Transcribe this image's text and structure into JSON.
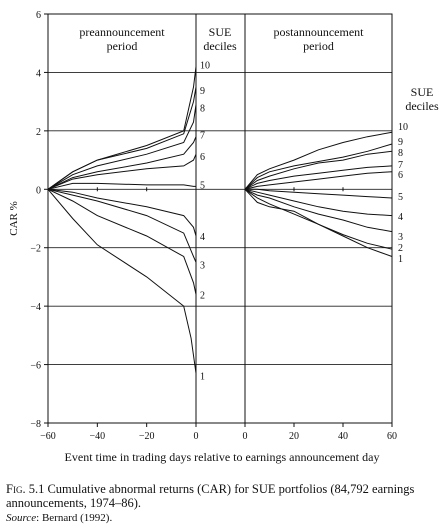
{
  "chart_data": {
    "type": "line",
    "ylabel": "CAR %",
    "xlabel": "Event time in trading days relative to earnings announcement day",
    "ylim": [
      -8,
      6
    ],
    "y_ticks": [
      -8,
      -6,
      -4,
      -2,
      0,
      2,
      4,
      6
    ],
    "panels": [
      {
        "title": "preannouncement period",
        "title_lines": [
          "preannouncement",
          "period"
        ],
        "xlim": [
          -60,
          0
        ],
        "x_ticks": [
          -60,
          -40,
          -20,
          0
        ],
        "x_tick_labels": [
          "−60",
          "−40",
          "−20",
          "0"
        ],
        "legend_title_lines": [
          "SUE",
          "deciles"
        ],
        "series": [
          {
            "name": "10",
            "x": [
              -60,
              -50,
              -40,
              -20,
              -5,
              -1,
              0
            ],
            "y": [
              0,
              0.6,
              1.0,
              1.5,
              2.0,
              3.5,
              4.2
            ]
          },
          {
            "name": "9",
            "x": [
              -60,
              -50,
              -40,
              -20,
              -5,
              -1,
              0
            ],
            "y": [
              0,
              0.6,
              1.0,
              1.4,
              1.9,
              3.0,
              3.5
            ]
          },
          {
            "name": "8",
            "x": [
              -60,
              -50,
              -40,
              -20,
              -5,
              -1,
              0
            ],
            "y": [
              0,
              0.5,
              0.8,
              1.2,
              1.6,
              2.3,
              2.9
            ]
          },
          {
            "name": "7",
            "x": [
              -60,
              -50,
              -40,
              -20,
              -5,
              -1,
              0
            ],
            "y": [
              0,
              0.4,
              0.6,
              0.9,
              1.2,
              1.6,
              1.8
            ]
          },
          {
            "name": "6",
            "x": [
              -60,
              -50,
              -40,
              -20,
              -5,
              -1,
              0
            ],
            "y": [
              0,
              0.35,
              0.5,
              0.7,
              0.8,
              1.0,
              1.2
            ]
          },
          {
            "name": "5",
            "x": [
              -60,
              -50,
              -40,
              -20,
              -5,
              -1,
              0
            ],
            "y": [
              0,
              0.2,
              0.2,
              0.15,
              0.15,
              0.1,
              0.1
            ]
          },
          {
            "name": "4",
            "x": [
              -60,
              -50,
              -40,
              -20,
              -5,
              -1,
              0
            ],
            "y": [
              0,
              -0.1,
              -0.3,
              -0.6,
              -0.9,
              -1.3,
              -1.6
            ]
          },
          {
            "name": "3",
            "x": [
              -60,
              -50,
              -40,
              -20,
              -5,
              -1,
              0
            ],
            "y": [
              0,
              -0.2,
              -0.4,
              -0.9,
              -1.5,
              -2.3,
              -2.5
            ]
          },
          {
            "name": "2",
            "x": [
              -60,
              -50,
              -40,
              -20,
              -5,
              -1,
              0
            ],
            "y": [
              0,
              -0.4,
              -0.9,
              -1.6,
              -2.3,
              -3.2,
              -3.6
            ]
          },
          {
            "name": "1",
            "x": [
              -60,
              -50,
              -40,
              -20,
              -5,
              -2,
              0
            ],
            "y": [
              0,
              -1.0,
              -1.9,
              -3.0,
              -4.0,
              -5.1,
              -6.3
            ]
          }
        ]
      },
      {
        "title": "postannouncement period",
        "title_lines": [
          "postannouncement",
          "period"
        ],
        "xlim": [
          0,
          60
        ],
        "x_ticks": [
          0,
          20,
          40,
          60
        ],
        "x_tick_labels": [
          "0",
          "20",
          "40",
          "60"
        ],
        "legend_title_lines": [
          "SUE",
          "deciles"
        ],
        "series": [
          {
            "name": "10",
            "x": [
              0,
              5,
              10,
              20,
              30,
              40,
              50,
              60
            ],
            "y": [
              0,
              0.5,
              0.7,
              1.0,
              1.35,
              1.6,
              1.8,
              1.95
            ]
          },
          {
            "name": "9",
            "x": [
              0,
              5,
              10,
              20,
              30,
              40,
              50,
              60
            ],
            "y": [
              0,
              0.4,
              0.6,
              0.8,
              0.95,
              1.1,
              1.3,
              1.55
            ]
          },
          {
            "name": "8",
            "x": [
              0,
              5,
              10,
              20,
              30,
              40,
              50,
              60
            ],
            "y": [
              0,
              0.3,
              0.45,
              0.7,
              0.9,
              1.0,
              1.2,
              1.3
            ]
          },
          {
            "name": "7",
            "x": [
              0,
              5,
              10,
              20,
              30,
              40,
              50,
              60
            ],
            "y": [
              0,
              0.2,
              0.3,
              0.45,
              0.55,
              0.65,
              0.75,
              0.8
            ]
          },
          {
            "name": "6",
            "x": [
              0,
              5,
              10,
              20,
              30,
              40,
              50,
              60
            ],
            "y": [
              0,
              0.1,
              0.15,
              0.25,
              0.35,
              0.45,
              0.55,
              0.6
            ]
          },
          {
            "name": "5",
            "x": [
              0,
              5,
              10,
              20,
              30,
              40,
              50,
              60
            ],
            "y": [
              0,
              0.0,
              -0.05,
              -0.1,
              -0.15,
              -0.2,
              -0.25,
              -0.3
            ]
          },
          {
            "name": "4",
            "x": [
              0,
              5,
              10,
              20,
              30,
              40,
              50,
              60
            ],
            "y": [
              0,
              -0.1,
              -0.2,
              -0.4,
              -0.6,
              -0.75,
              -0.85,
              -0.9
            ]
          },
          {
            "name": "3",
            "x": [
              0,
              5,
              10,
              20,
              30,
              40,
              50,
              60
            ],
            "y": [
              0,
              -0.2,
              -0.3,
              -0.6,
              -0.85,
              -1.05,
              -1.3,
              -1.45
            ]
          },
          {
            "name": "2",
            "x": [
              0,
              5,
              10,
              20,
              30,
              40,
              50,
              60
            ],
            "y": [
              0,
              -0.3,
              -0.5,
              -0.85,
              -1.2,
              -1.55,
              -1.85,
              -2.05
            ]
          },
          {
            "name": "1",
            "x": [
              0,
              5,
              10,
              20,
              30,
              40,
              50,
              60
            ],
            "y": [
              0,
              -0.45,
              -0.6,
              -0.75,
              -1.2,
              -1.6,
              -2.0,
              -2.3
            ]
          }
        ]
      }
    ],
    "grid": "horizontal at y=-6, -4, -2, 0, 2, 4"
  },
  "caption": {
    "fig_label": "Fig. 5.1",
    "text": " Cumulative abnormal returns (CAR) for SUE portfolios (84,792 earnings announcements, 1974–86).",
    "source_label": "Source",
    "source_text": ": Bernard (1992)."
  }
}
